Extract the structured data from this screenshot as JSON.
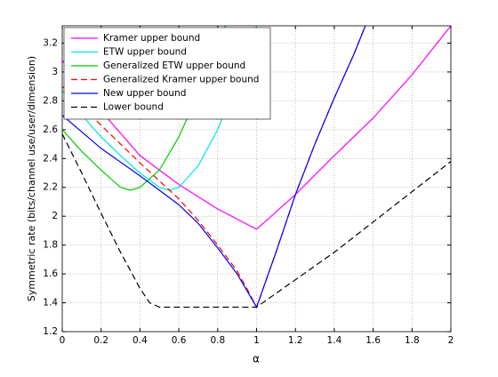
{
  "chart_data": {
    "type": "line",
    "xlabel": "α",
    "ylabel": "Symmetric rate (bits/channel use/user/dimension)",
    "xlim": [
      0,
      2
    ],
    "ylim": [
      1.2,
      3.32
    ],
    "xticks": [
      0,
      0.2,
      0.4,
      0.6,
      0.8,
      1,
      1.2,
      1.4,
      1.6,
      1.8,
      2
    ],
    "yticks": [
      1.2,
      1.4,
      1.6,
      1.8,
      2,
      2.2,
      2.4,
      2.6,
      2.8,
      3,
      3.2
    ],
    "grid": true,
    "legend": "upper left",
    "series": [
      {
        "name": "Kramer upper bound",
        "color": "#ff00ff",
        "dash": "solid",
        "x": [
          0,
          0.2,
          0.4,
          0.6,
          0.8,
          1,
          1.2,
          1.4,
          1.6,
          1.8,
          2
        ],
        "values": [
          3.08,
          2.73,
          2.42,
          2.22,
          2.05,
          1.91,
          2.15,
          2.42,
          2.68,
          2.98,
          3.32
        ]
      },
      {
        "name": "ETW upper bound",
        "color": "#00e5e5",
        "dash": "solid",
        "x": [
          0,
          0.1,
          0.2,
          0.3,
          0.4,
          0.5,
          0.55,
          0.6,
          0.7,
          0.8,
          0.9,
          1
        ],
        "values": [
          2.87,
          2.7,
          2.55,
          2.42,
          2.3,
          2.2,
          2.18,
          2.2,
          2.35,
          2.6,
          2.95,
          3.32
        ]
      },
      {
        "name": "Generalized ETW upper bound",
        "color": "#00cc00",
        "dash": "solid",
        "x": [
          0,
          0.1,
          0.2,
          0.3,
          0.35,
          0.4,
          0.5,
          0.6,
          0.7,
          0.8,
          0.84
        ],
        "values": [
          2.6,
          2.45,
          2.32,
          2.2,
          2.18,
          2.2,
          2.32,
          2.55,
          2.85,
          3.2,
          3.32
        ]
      },
      {
        "name": "Generalized Kramer upper bound",
        "color": "#ff0000",
        "dash": "dashed",
        "x": [
          0,
          0.2,
          0.4,
          0.6,
          0.7,
          0.8,
          0.9,
          0.95,
          1,
          1.1,
          1.2,
          1.3,
          1.4,
          1.5,
          1.56
        ],
        "values": [
          2.9,
          2.63,
          2.37,
          2.12,
          1.97,
          1.8,
          1.62,
          1.5,
          1.37,
          1.75,
          2.15,
          2.5,
          2.82,
          3.12,
          3.32
        ]
      },
      {
        "name": "New upper bound",
        "color": "#0000ff",
        "dash": "solid",
        "x": [
          0,
          0.2,
          0.4,
          0.6,
          0.7,
          0.8,
          0.9,
          1,
          1.1,
          1.2,
          1.3,
          1.4,
          1.5,
          1.56
        ],
        "values": [
          2.7,
          2.47,
          2.28,
          2.08,
          1.95,
          1.78,
          1.6,
          1.37,
          1.75,
          2.15,
          2.5,
          2.82,
          3.12,
          3.32
        ]
      },
      {
        "name": "Lower bound",
        "color": "#000000",
        "dash": "dashed",
        "x": [
          0,
          0.1,
          0.2,
          0.3,
          0.4,
          0.45,
          0.5,
          1,
          1.2,
          1.4,
          1.6,
          1.8,
          2
        ],
        "values": [
          2.57,
          2.3,
          2.02,
          1.75,
          1.5,
          1.4,
          1.37,
          1.37,
          1.56,
          1.75,
          1.96,
          2.17,
          2.38
        ]
      }
    ]
  }
}
